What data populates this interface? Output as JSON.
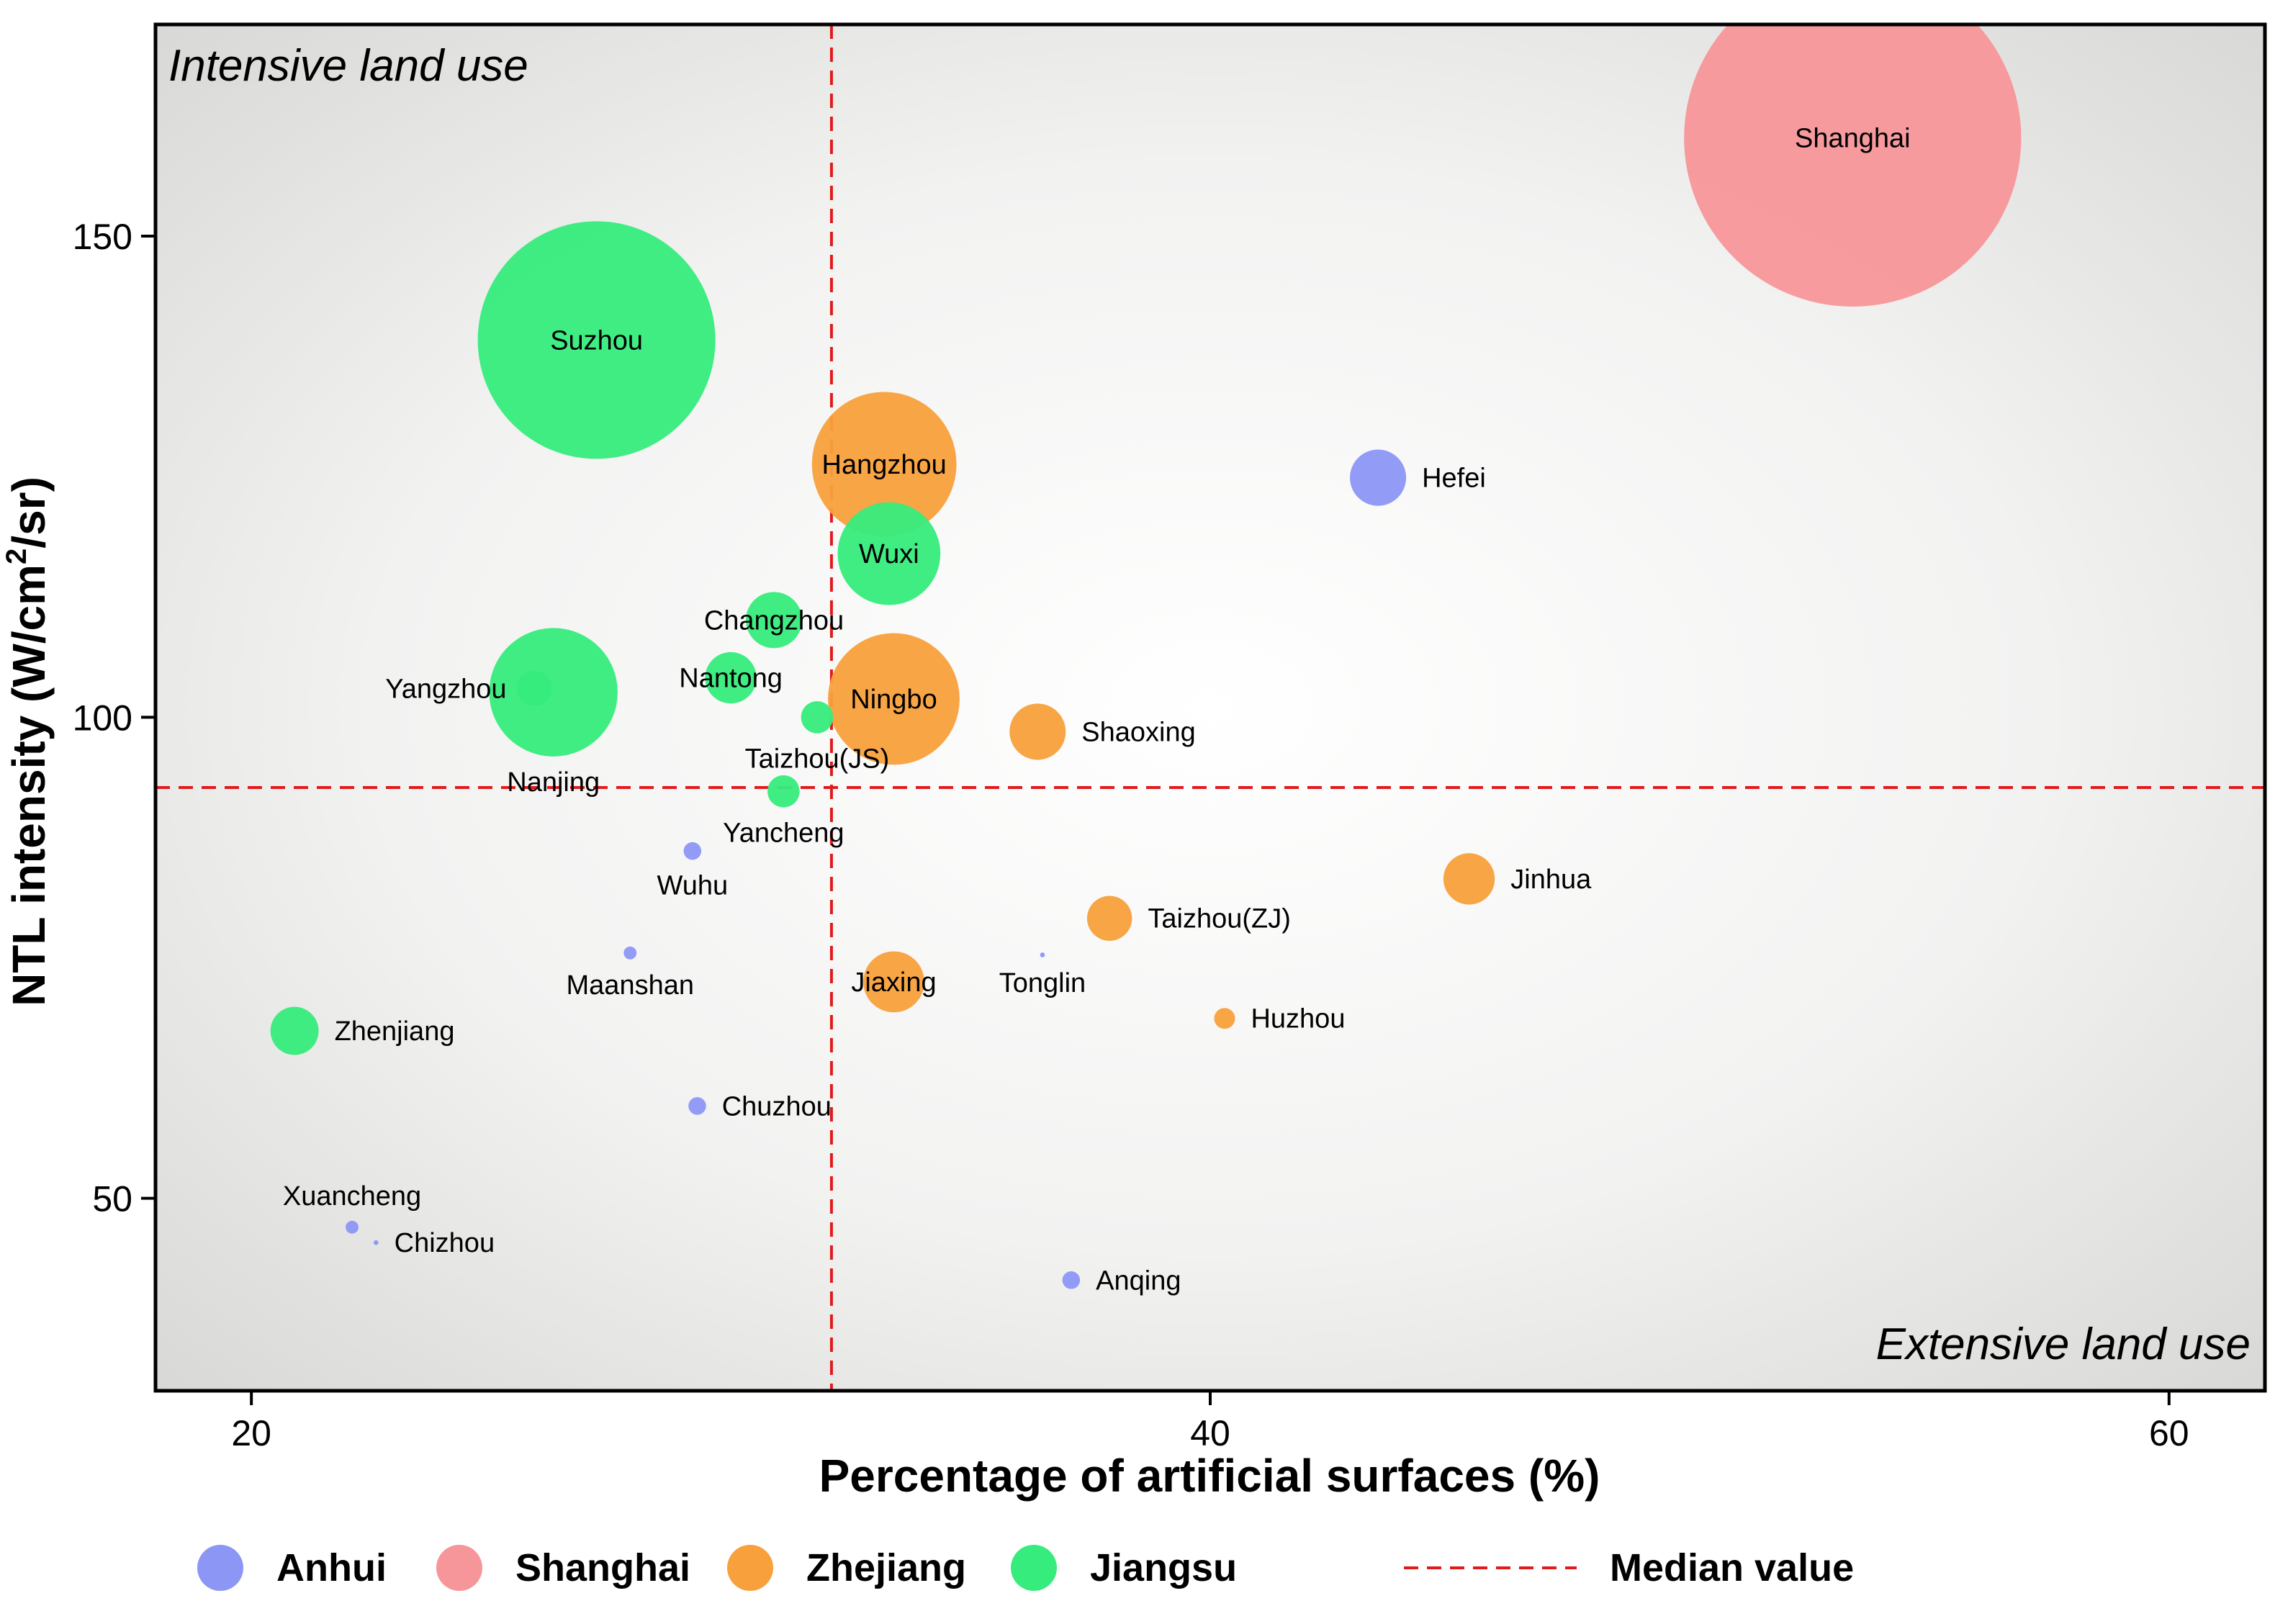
{
  "chart_data": {
    "type": "scatter",
    "subtype": "bubble",
    "xlabel": "Percentage of artificial surfaces (%)",
    "ylabel_parts": {
      "main": "NTL intensity (W/cm",
      "sup": "2",
      "end": "/sr)"
    },
    "xlim": [
      18,
      62
    ],
    "ylim": [
      30,
      172
    ],
    "x_ticks": [
      20,
      40,
      60
    ],
    "y_ticks": [
      50,
      100,
      150
    ],
    "grid": false,
    "legend_position": "bottom",
    "annotations": {
      "top_left": "Intensive land use",
      "bottom_right": "Extensive land use"
    },
    "median": {
      "x": 32.1,
      "y": 92.7,
      "label": "Median value",
      "color": "#e31a1c"
    },
    "groups": [
      {
        "name": "Anhui",
        "color": "#8c96f5"
      },
      {
        "name": "Shanghai",
        "color": "#f7969a"
      },
      {
        "name": "Zhejiang",
        "color": "#f8a03c"
      },
      {
        "name": "Jiangsu",
        "color": "#36ec7c"
      }
    ],
    "points": [
      {
        "city": "Shanghai",
        "group": "Shanghai",
        "x": 53.4,
        "y": 160.2,
        "size": 10.5,
        "label_pos": "center"
      },
      {
        "city": "Suzhou",
        "group": "Jiangsu",
        "x": 27.2,
        "y": 139.2,
        "size": 7.4,
        "label_pos": "center"
      },
      {
        "city": "Hangzhou",
        "group": "Zhejiang",
        "x": 33.2,
        "y": 126.3,
        "size": 4.5,
        "label_pos": "center"
      },
      {
        "city": "Wuxi",
        "group": "Jiangsu",
        "x": 33.3,
        "y": 117.0,
        "size": 3.2,
        "label_pos": "center"
      },
      {
        "city": "Hefei",
        "group": "Anhui",
        "x": 43.5,
        "y": 124.9,
        "size": 1.75,
        "label_pos": "right"
      },
      {
        "city": "Changzhou",
        "group": "Jiangsu",
        "x": 30.9,
        "y": 110.1,
        "size": 1.75,
        "label_pos": "center"
      },
      {
        "city": "Nantong",
        "group": "Jiangsu",
        "x": 30.0,
        "y": 104.1,
        "size": 1.6,
        "label_pos": "center"
      },
      {
        "city": "Ningbo",
        "group": "Zhejiang",
        "x": 33.4,
        "y": 101.9,
        "size": 4.1,
        "label_pos": "center"
      },
      {
        "city": "Nanjing",
        "group": "Jiangsu",
        "x": 26.3,
        "y": 102.6,
        "size": 4.0,
        "label_pos": "below"
      },
      {
        "city": "Yangzhou",
        "group": "Jiangsu",
        "x": 25.9,
        "y": 103.0,
        "size": 1.1,
        "label_pos": "left"
      },
      {
        "city": "Taizhou(JS)",
        "group": "Jiangsu",
        "x": 31.8,
        "y": 100.0,
        "size": 1.0,
        "label_pos": "below"
      },
      {
        "city": "Shaoxing",
        "group": "Zhejiang",
        "x": 36.4,
        "y": 98.5,
        "size": 1.75,
        "label_pos": "right"
      },
      {
        "city": "Yancheng",
        "group": "Jiangsu",
        "x": 31.1,
        "y": 92.3,
        "size": 1.0,
        "label_pos": "below"
      },
      {
        "city": "Wuhu",
        "group": "Anhui",
        "x": 29.2,
        "y": 86.1,
        "size": 0.55,
        "label_pos": "below"
      },
      {
        "city": "Jinhua",
        "group": "Zhejiang",
        "x": 45.4,
        "y": 83.2,
        "size": 1.6,
        "label_pos": "right"
      },
      {
        "city": "Taizhou(ZJ)",
        "group": "Zhejiang",
        "x": 37.9,
        "y": 79.1,
        "size": 1.4,
        "label_pos": "right"
      },
      {
        "city": "Maanshan",
        "group": "Anhui",
        "x": 27.9,
        "y": 75.5,
        "size": 0.4,
        "label_pos": "below"
      },
      {
        "city": "Tonglin",
        "group": "Anhui",
        "x": 36.5,
        "y": 75.3,
        "size": 0.15,
        "label_pos": "below"
      },
      {
        "city": "Jiaxing",
        "group": "Zhejiang",
        "x": 33.4,
        "y": 72.5,
        "size": 1.9,
        "label_pos": "center"
      },
      {
        "city": "Huzhou",
        "group": "Zhejiang",
        "x": 40.3,
        "y": 68.7,
        "size": 0.65,
        "label_pos": "right"
      },
      {
        "city": "Zhenjiang",
        "group": "Jiangsu",
        "x": 20.9,
        "y": 67.4,
        "size": 1.5,
        "label_pos": "right"
      },
      {
        "city": "Chuzhou",
        "group": "Anhui",
        "x": 29.3,
        "y": 59.6,
        "size": 0.55,
        "label_pos": "right"
      },
      {
        "city": "Xuancheng",
        "group": "Anhui",
        "x": 22.1,
        "y": 47.0,
        "size": 0.4,
        "label_pos": "above"
      },
      {
        "city": "Chizhou",
        "group": "Anhui",
        "x": 22.6,
        "y": 45.4,
        "size": 0.15,
        "label_pos": "right"
      },
      {
        "city": "Anqing",
        "group": "Anhui",
        "x": 37.1,
        "y": 41.5,
        "size": 0.55,
        "label_pos": "right"
      }
    ]
  }
}
